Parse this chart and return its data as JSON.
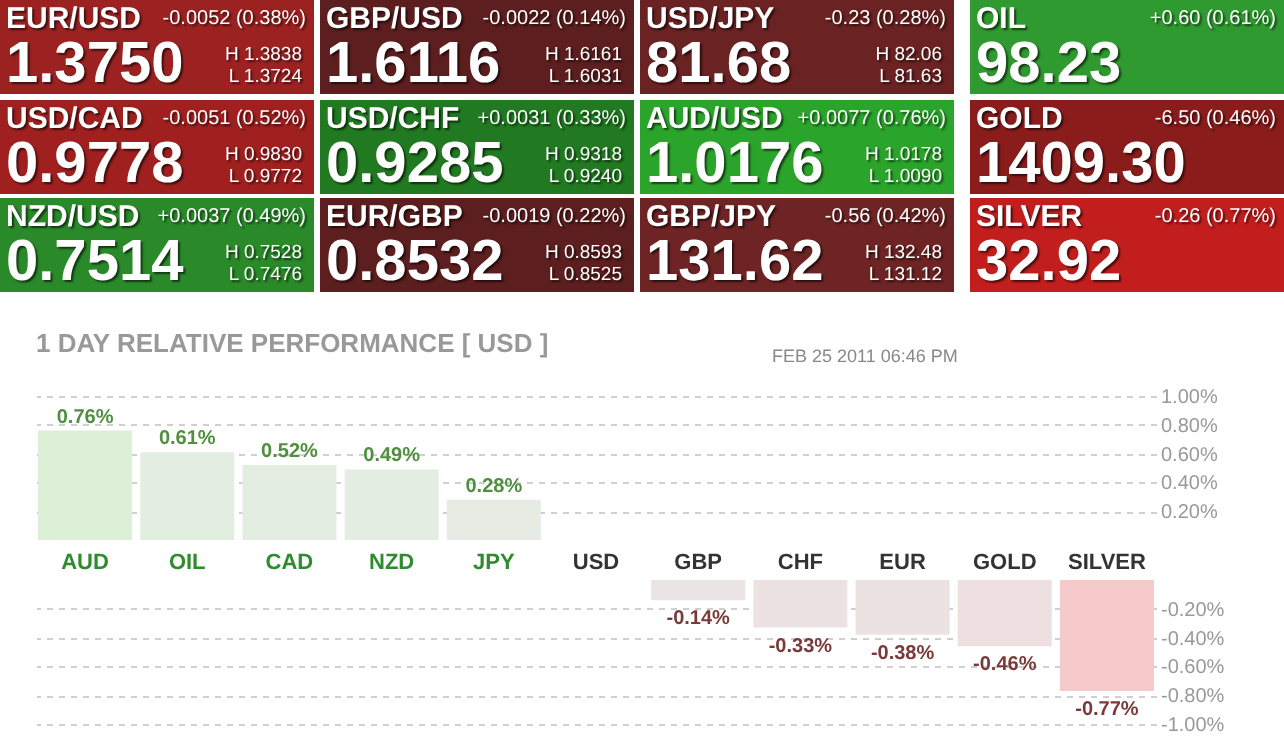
{
  "chart_data": [
    {
      "type": "other",
      "annotations": [
        "EUR/USD",
        "-0.0052 (0.38%)",
        "1.3750",
        "H 1.3838",
        "L 1.3724",
        "GBP/USD",
        "-0.0022 (0.14%)",
        "1.6116",
        "H 1.6161",
        "L 1.6031",
        "USD/JPY",
        "-0.23 (0.28%)",
        "81.68",
        "H 82.06",
        "L 81.63",
        "OIL",
        "+0.60 (0.61%)",
        "98.23",
        "USD/CAD",
        "-0.0051 (0.52%)",
        "0.9778",
        "H 0.9830",
        "L 0.9772",
        "USD/CHF",
        "+0.0031 (0.33%)",
        "0.9285",
        "H 0.9318",
        "L 0.9240",
        "AUD/USD",
        "+0.0077 (0.76%)",
        "1.0176",
        "H 1.0178",
        "L 1.0090",
        "GOLD",
        "-6.50 (0.46%)",
        "1409.30",
        "NZD/USD",
        "+0.0037 (0.49%)",
        "0.7514",
        "H 0.7528",
        "L 0.7476",
        "EUR/GBP",
        "-0.0019 (0.22%)",
        "0.8532",
        "H 0.8593",
        "L 0.8525",
        "GBP/JPY",
        "-0.56 (0.42%)",
        "131.62",
        "H 132.48",
        "L 131.12",
        "SILVER",
        "-0.26 (0.77%)",
        "32.92"
      ],
      "colors": [
        "#9c2222",
        "#5c1e1e",
        "#6a2222",
        "#2f9a2f",
        "#a02020",
        "#217a21",
        "#2ba42b",
        "#8a1c1c",
        "#2a8a2a",
        "#5c1e1e",
        "#6e2424",
        "#c21e1e"
      ]
    },
    {
      "type": "bar",
      "title": "1 DAY RELATIVE PERFORMANCE   [ USD ]",
      "annotations": [
        "FEB 25 2011 06:46 PM"
      ],
      "categories": [
        "AUD",
        "OIL",
        "CAD",
        "NZD",
        "JPY",
        "USD",
        "GBP",
        "CHF",
        "EUR",
        "GOLD",
        "SILVER"
      ],
      "values": [
        0.76,
        0.61,
        0.52,
        0.49,
        0.28,
        0,
        null,
        null,
        null,
        null,
        null
      ],
      "colors": [
        "#dcf0d8",
        "#e2eedf",
        "#e4ede1",
        "#e4ede1",
        "#e6ebe3",
        "#eeeeee",
        "#ebe4e4",
        "#ece2e2",
        "#ece2e2",
        "#eee0e0",
        "#f6caca"
      ],
      "value_labels": [
        "0.76%",
        "0.61%",
        "0.52%",
        "0.49%",
        "0.28%",
        null,
        null,
        null,
        null,
        null,
        null
      ],
      "ylim": [
        0,
        1
      ],
      "yticks": [
        {
          "value": 1,
          "label": "1.00%"
        },
        {
          "value": 0.8,
          "label": "0.80%"
        },
        {
          "value": 0.6,
          "label": "0.60%"
        },
        {
          "value": 0.4,
          "label": "0.40%"
        },
        {
          "value": 0.2,
          "label": "0.20%"
        }
      ],
      "grid": "y"
    },
    {
      "type": "bar",
      "categories": [
        null,
        null,
        null,
        null,
        null,
        null,
        null,
        null,
        null,
        null,
        null
      ],
      "values": [
        null,
        null,
        null,
        null,
        null,
        null,
        -0.14,
        -0.33,
        -0.38,
        -0.46,
        -0.77
      ],
      "colors": [
        "#dcf0d8",
        "#e2eedf",
        "#e4ede1",
        "#e4ede1",
        "#e6ebe3",
        "#eeeeee",
        "#ebe4e4",
        "#ece2e2",
        "#ece2e2",
        "#eee0e0",
        "#f6caca"
      ],
      "value_labels": [
        null,
        null,
        null,
        null,
        null,
        null,
        "-0.14%",
        "-0.33%",
        "-0.38%",
        "-0.46%",
        "-0.77%"
      ],
      "ylim": [
        -1,
        0
      ],
      "yticks": [
        {
          "value": -0.2,
          "label": "-0.20%"
        },
        {
          "value": -0.4,
          "label": "-0.40%"
        },
        {
          "value": -0.6,
          "label": "-0.60%"
        },
        {
          "value": -0.8,
          "label": "-0.80%"
        },
        {
          "value": -1,
          "label": "-1.00%"
        }
      ],
      "grid": "y",
      "tick_labels": "y"
    }
  ]
}
